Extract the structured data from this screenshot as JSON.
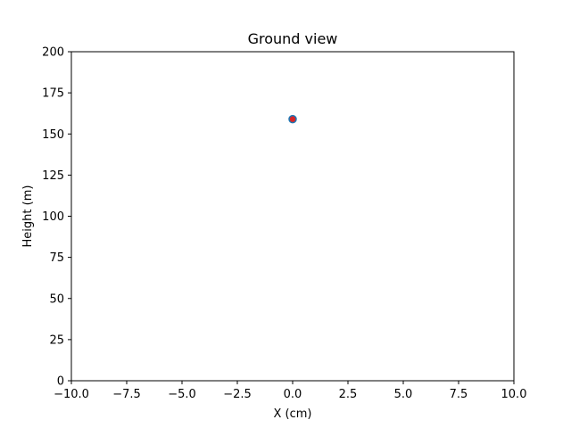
{
  "chart_data": {
    "type": "scatter",
    "title": "Ground view",
    "xlabel": "X (cm)",
    "ylabel": "Height (m)",
    "xlim": [
      -10,
      10
    ],
    "ylim": [
      0,
      200
    ],
    "x_ticks": [
      -10,
      -7.5,
      -5,
      -2.5,
      0,
      2.5,
      5,
      7.5,
      10
    ],
    "x_tick_labels": [
      "−10.0",
      "−7.5",
      "−5.0",
      "−2.5",
      "0.0",
      "2.5",
      "5.0",
      "7.5",
      "10.0"
    ],
    "y_ticks": [
      0,
      25,
      50,
      75,
      100,
      125,
      150,
      175,
      200
    ],
    "y_tick_labels": [
      "0",
      "25",
      "50",
      "75",
      "100",
      "125",
      "150",
      "175",
      "200"
    ],
    "grid": false,
    "series": [
      {
        "points": [
          {
            "x": 0.0,
            "y": 159
          }
        ],
        "fill_color": "#d62728",
        "edge_color": "#1f77b4"
      }
    ]
  }
}
